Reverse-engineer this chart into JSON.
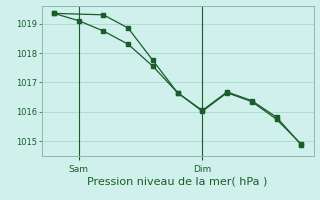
{
  "background_color": "#cff0eb",
  "grid_color": "#aad8d0",
  "line_color": "#1a5c2a",
  "spine_color": "#8ab8a8",
  "xlabel": "Pression niveau de la mer( hPa )",
  "ylim": [
    1014.5,
    1019.6
  ],
  "yticks": [
    1015,
    1016,
    1017,
    1018,
    1019
  ],
  "xlim": [
    -0.5,
    10.5
  ],
  "x_sam": 1,
  "x_dim": 6,
  "series1_x": [
    0,
    1,
    2,
    3,
    4,
    5,
    6,
    7,
    8,
    9,
    10
  ],
  "series1_y": [
    1019.35,
    1019.1,
    1018.75,
    1018.3,
    1017.55,
    1016.65,
    1016.02,
    1016.65,
    1016.35,
    1015.75,
    1014.9
  ],
  "series2_x": [
    0,
    2,
    3,
    4,
    5,
    6,
    7,
    8,
    9,
    10
  ],
  "series2_y": [
    1019.35,
    1019.3,
    1018.85,
    1017.75,
    1016.65,
    1016.05,
    1016.68,
    1016.38,
    1015.82,
    1014.88
  ],
  "xtick_positions": [
    1,
    6
  ],
  "xtick_labels": [
    "Sam",
    "Dim"
  ],
  "xlabel_fontsize": 8,
  "ytick_fontsize": 6,
  "xtick_fontsize": 6.5
}
